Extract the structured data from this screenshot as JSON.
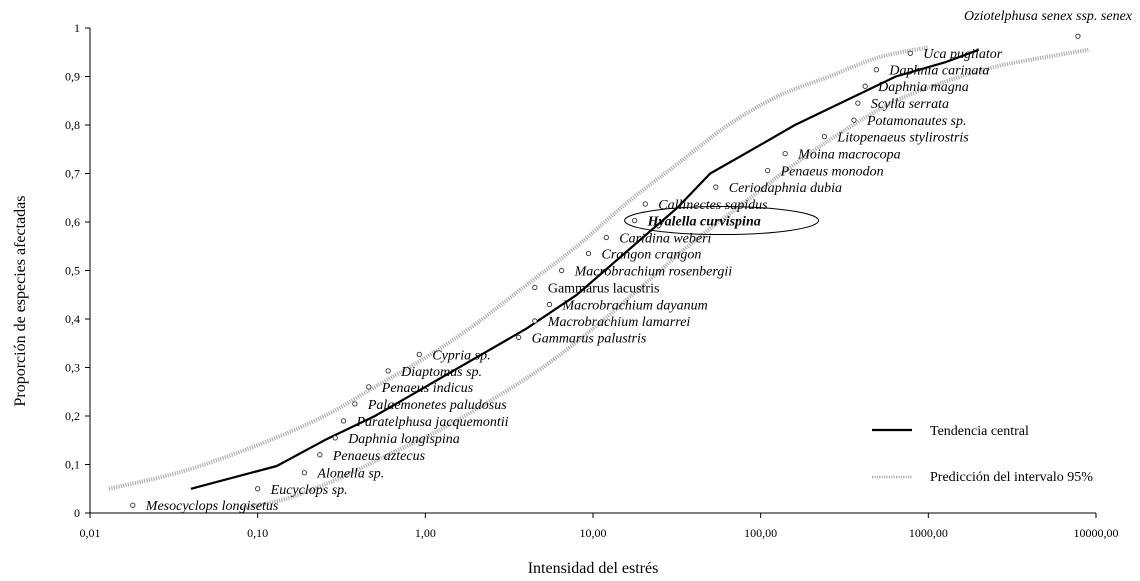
{
  "chart_data": {
    "type": "scatter",
    "xlabel": "Intensidad del estrés",
    "ylabel": "Proporción de especies afectadas",
    "x_scale": "log",
    "xlim": [
      0.01,
      10000
    ],
    "ylim": [
      0,
      1
    ],
    "x_ticks": [
      "0,01",
      "0,10",
      "1,00",
      "10,00",
      "100,00",
      "1000,00",
      "10000,00"
    ],
    "y_ticks": [
      "0",
      "0,1",
      "0,2",
      "0,3",
      "0,4",
      "0,5",
      "0,6",
      "0,7",
      "0,8",
      "0,9",
      "1"
    ],
    "grid": false,
    "legend_position": "bottom-right",
    "legend": [
      {
        "label": "Tendencia central",
        "style": "solid",
        "color": "#000000"
      },
      {
        "label": "Predicción del intervalo 95%",
        "style": "dotted-band",
        "color": "#a0a0a0"
      }
    ],
    "species": [
      {
        "name": "Mesocyclops longisetus",
        "x": 0.018,
        "y": 0.016
      },
      {
        "name": "Eucyclops sp.",
        "x": 0.1,
        "y": 0.05
      },
      {
        "name": "Alonella sp.",
        "x": 0.19,
        "y": 0.083
      },
      {
        "name": "Penaeus aztecus",
        "x": 0.235,
        "y": 0.12
      },
      {
        "name": "Daphnia longispina",
        "x": 0.29,
        "y": 0.155
      },
      {
        "name": "Paratelphusa jacquemontii",
        "x": 0.325,
        "y": 0.19
      },
      {
        "name": "Palaemonetes paludosus",
        "x": 0.38,
        "y": 0.225
      },
      {
        "name": "Penaeus indicus",
        "x": 0.46,
        "y": 0.26
      },
      {
        "name": "Diaptomus sp.",
        "x": 0.6,
        "y": 0.293
      },
      {
        "name": "Cypria sp.",
        "x": 0.92,
        "y": 0.327
      },
      {
        "name": "Gammarus palustris",
        "x": 3.6,
        "y": 0.362
      },
      {
        "name": "Macrobrachium lamarrei",
        "x": 4.5,
        "y": 0.396
      },
      {
        "name": "Macrobrachium dayanum",
        "x": 5.5,
        "y": 0.43
      },
      {
        "name": "Gammarus lacustris",
        "x": 4.5,
        "y": 0.465
      },
      {
        "name": "Macrobrachium rosenbergii",
        "x": 6.5,
        "y": 0.5
      },
      {
        "name": "Crangon crangon",
        "x": 9.4,
        "y": 0.535
      },
      {
        "name": "Caridina weberi",
        "x": 12,
        "y": 0.568
      },
      {
        "name": "Hyalella curvispina",
        "x": 17.7,
        "y": 0.603,
        "highlighted": true
      },
      {
        "name": "Callinectes sapidus",
        "x": 20.5,
        "y": 0.637
      },
      {
        "name": "Ceriodaphnia dubia",
        "x": 54,
        "y": 0.672
      },
      {
        "name": "Penaeus monodon",
        "x": 110,
        "y": 0.706
      },
      {
        "name": "Moina macrocopa",
        "x": 140,
        "y": 0.741
      },
      {
        "name": "Litopenaeus stylirostris",
        "x": 240,
        "y": 0.776
      },
      {
        "name": "Potamonautes sp.",
        "x": 360,
        "y": 0.81
      },
      {
        "name": "Scylla serrata",
        "x": 380,
        "y": 0.845
      },
      {
        "name": "Daphnia magna",
        "x": 420,
        "y": 0.88
      },
      {
        "name": "Daphnia carinata",
        "x": 490,
        "y": 0.914
      },
      {
        "name": "Uca pugilator",
        "x": 780,
        "y": 0.948
      },
      {
        "name": "Oziotelphusa senex ssp. senex",
        "x": 7800,
        "y": 0.983
      }
    ],
    "series": [
      {
        "name": "Tendencia central",
        "x": [
          0.04,
          0.13,
          0.25,
          0.5,
          1,
          2,
          4,
          8,
          16,
          32,
          50,
          80,
          160,
          320,
          640,
          1280,
          2000
        ],
        "y": [
          0.05,
          0.097,
          0.15,
          0.2,
          0.26,
          0.32,
          0.38,
          0.45,
          0.54,
          0.63,
          0.7,
          0.74,
          0.8,
          0.85,
          0.9,
          0.93,
          0.955
        ]
      },
      {
        "name": "Predicción del intervalo 95% (superior)",
        "x": [
          0.013,
          0.035,
          0.1,
          0.25,
          0.5,
          1,
          2,
          4,
          8,
          16,
          32,
          64,
          128,
          256,
          512,
          1000
        ],
        "y": [
          0.05,
          0.085,
          0.14,
          0.2,
          0.26,
          0.32,
          0.39,
          0.47,
          0.55,
          0.64,
          0.72,
          0.8,
          0.86,
          0.9,
          0.94,
          0.96
        ]
      },
      {
        "name": "Predicción del intervalo 95% (inferior)",
        "x": [
          0.08,
          0.15,
          0.3,
          0.6,
          1.2,
          2.4,
          5,
          10,
          20,
          40,
          80,
          160,
          320,
          640,
          1280,
          2500,
          5000,
          9000
        ],
        "y": [
          0.01,
          0.03,
          0.07,
          0.12,
          0.17,
          0.23,
          0.3,
          0.38,
          0.47,
          0.56,
          0.64,
          0.72,
          0.79,
          0.85,
          0.89,
          0.92,
          0.94,
          0.955
        ]
      }
    ]
  }
}
